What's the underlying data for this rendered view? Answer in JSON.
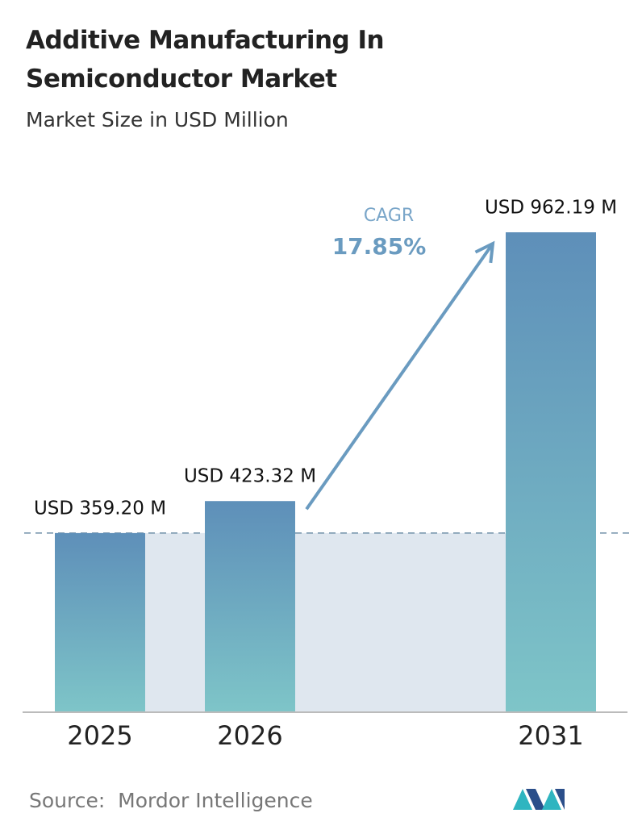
{
  "chart_data": {
    "type": "bar",
    "title": "Additive Manufacturing In Semiconductor Market",
    "subtitle": "Market Size in USD Million",
    "categories": [
      "2025",
      "2026",
      "2031"
    ],
    "values": [
      359.2,
      423.32,
      962.19
    ],
    "value_labels": [
      "USD 359.20 M",
      "USD 423.32 M",
      "USD 962.19 M"
    ],
    "color": "#6a9bc0",
    "cagr_label": "CAGR",
    "cagr_value": "17.85%",
    "source": "Source:  Mordor Intelligence"
  }
}
